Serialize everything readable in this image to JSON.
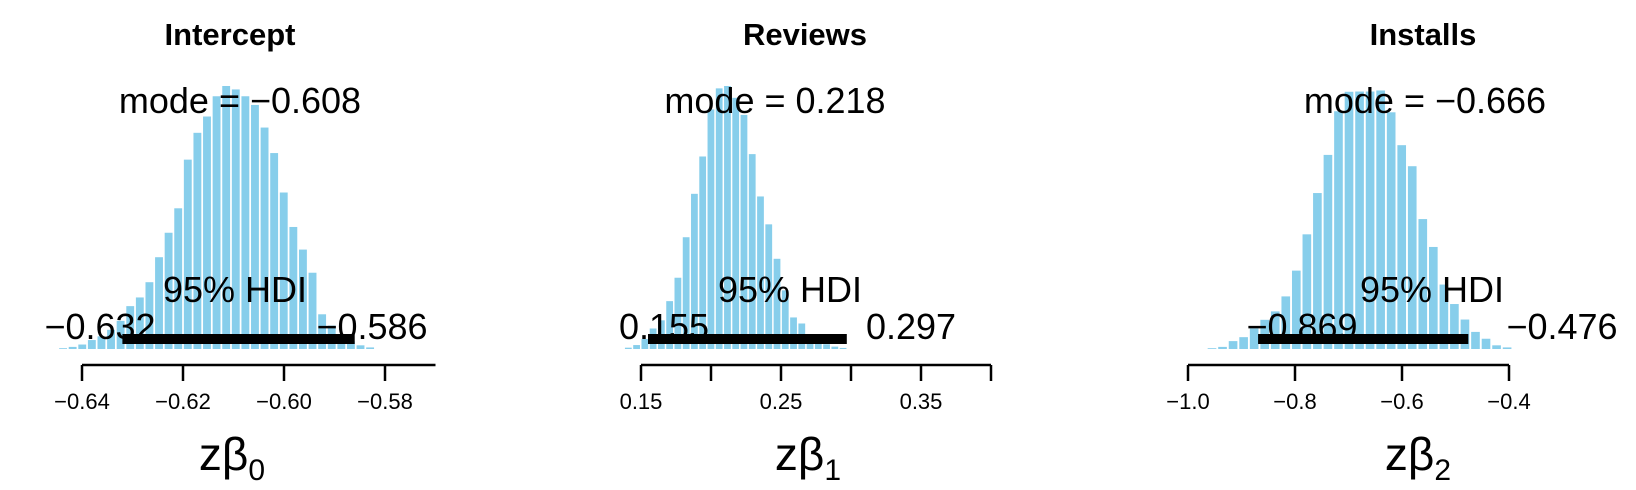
{
  "figure": {
    "bar_color": "#87CEEB",
    "hdi_color": "#000000"
  },
  "panels": [
    {
      "title": "Intercept",
      "mode_label": "mode = −0.608",
      "hdi_label": "95% HDI",
      "hdi_lower_label": "−0.632",
      "hdi_upper_label": "−0.586",
      "xlabel_main": "zβ",
      "xlabel_sub": "0",
      "ticks": [
        {
          "value": -0.64,
          "label": "−0.64"
        },
        {
          "value": -0.62,
          "label": "−0.62"
        },
        {
          "value": -0.6,
          "label": "−0.60"
        },
        {
          "value": -0.58,
          "label": "−0.58"
        }
      ],
      "axis_extent": [
        -0.64,
        -0.57
      ]
    },
    {
      "title": "Reviews",
      "mode_label": "mode = 0.218",
      "hdi_label": "95% HDI",
      "hdi_lower_label": "0.155",
      "hdi_upper_label": "0.297",
      "xlabel_main": "zβ",
      "xlabel_sub": "1",
      "ticks": [
        {
          "value": 0.15,
          "label": "0.15"
        },
        {
          "value": 0.2,
          "label": ""
        },
        {
          "value": 0.25,
          "label": "0.25"
        },
        {
          "value": 0.3,
          "label": ""
        },
        {
          "value": 0.35,
          "label": "0.35"
        },
        {
          "value": 0.4,
          "label": ""
        }
      ],
      "axis_extent": [
        0.15,
        0.4
      ]
    },
    {
      "title": "Installs",
      "mode_label": "mode = −0.666",
      "hdi_label": "95% HDI",
      "hdi_lower_label": "−0.869",
      "hdi_upper_label": "−0.476",
      "xlabel_main": "zβ",
      "xlabel_sub": "2",
      "ticks": [
        {
          "value": -1.0,
          "label": "−1.0"
        },
        {
          "value": -0.8,
          "label": "−0.8"
        },
        {
          "value": -0.6,
          "label": "−0.6"
        },
        {
          "value": -0.4,
          "label": "−0.4"
        }
      ],
      "axis_extent": [
        -1.0,
        -0.4
      ]
    }
  ],
  "chart_data": [
    {
      "type": "bar",
      "title": "Intercept",
      "xlabel": "zβ0",
      "mode": -0.608,
      "hdi": [
        -0.632,
        -0.586
      ],
      "xlim": [
        -0.645,
        -0.577
      ],
      "bin_width": 0.0019,
      "bins_start": -0.6447,
      "density_max": 1.0,
      "values": [
        0.003,
        0.008,
        0.017,
        0.034,
        0.048,
        0.073,
        0.107,
        0.163,
        0.196,
        0.254,
        0.349,
        0.442,
        0.535,
        0.72,
        0.822,
        0.884,
        0.961,
        1.0,
        0.987,
        0.961,
        0.928,
        0.842,
        0.745,
        0.595,
        0.464,
        0.378,
        0.29,
        0.132,
        0.089,
        0.052,
        0.029,
        0.014,
        0.006
      ]
    },
    {
      "type": "bar",
      "title": "Reviews",
      "xlabel": "zβ1",
      "mode": 0.218,
      "hdi": [
        0.155,
        0.297
      ],
      "xlim": [
        0.135,
        0.34
      ],
      "bin_width": 0.0059,
      "bins_start": 0.138,
      "density_max": 1.0,
      "values": [
        0.005,
        0.015,
        0.038,
        0.078,
        0.109,
        0.182,
        0.271,
        0.425,
        0.59,
        0.732,
        0.911,
        0.991,
        1.0,
        0.955,
        0.89,
        0.741,
        0.58,
        0.474,
        0.343,
        0.223,
        0.12,
        0.097,
        0.05,
        0.038,
        0.018,
        0.009,
        0.004
      ]
    },
    {
      "type": "bar",
      "title": "Installs",
      "xlabel": "zβ2",
      "mode": -0.666,
      "hdi": [
        -0.869,
        -0.476
      ],
      "xlim": [
        -0.97,
        -0.38
      ],
      "bin_width": 0.0197,
      "bins_start": -0.965,
      "density_max": 1.0,
      "values": [
        0.003,
        0.008,
        0.03,
        0.045,
        0.078,
        0.111,
        0.143,
        0.2,
        0.298,
        0.436,
        0.593,
        0.738,
        0.904,
        0.978,
        0.979,
        0.979,
        0.983,
        0.9,
        0.775,
        0.695,
        0.494,
        0.388,
        0.245,
        0.171,
        0.112,
        0.065,
        0.039,
        0.014,
        0.006
      ]
    }
  ]
}
